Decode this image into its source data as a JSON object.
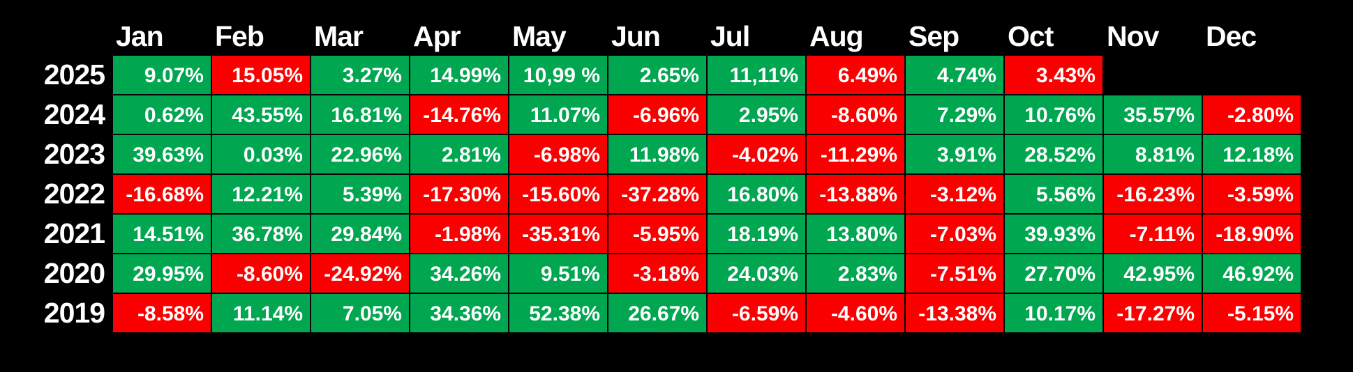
{
  "colors": {
    "positive": "#00a650",
    "negative": "#fb0000",
    "background": "#000000",
    "text": "#ffffff"
  },
  "table": {
    "months": [
      "Jan",
      "Feb",
      "Mar",
      "Apr",
      "May",
      "Jun",
      "Jul",
      "Aug",
      "Sep",
      "Oct",
      "Nov",
      "Dec"
    ],
    "rows": [
      {
        "year": "2025",
        "cells": [
          {
            "t": "9.07%",
            "c": "green"
          },
          {
            "t": "15.05%",
            "c": "red"
          },
          {
            "t": "3.27%",
            "c": "green"
          },
          {
            "t": "14.99%",
            "c": "green"
          },
          {
            "t": "10,99 %",
            "c": "green"
          },
          {
            "t": "2.65%",
            "c": "green"
          },
          {
            "t": "11,11%",
            "c": "green"
          },
          {
            "t": "6.49%",
            "c": "red"
          },
          {
            "t": "4.74%",
            "c": "green"
          },
          {
            "t": "3.43%",
            "c": "red"
          },
          {
            "t": "",
            "c": "none"
          },
          {
            "t": "",
            "c": "none"
          }
        ]
      },
      {
        "year": "2024",
        "cells": [
          {
            "t": "0.62%",
            "c": "green"
          },
          {
            "t": "43.55%",
            "c": "green"
          },
          {
            "t": "16.81%",
            "c": "green"
          },
          {
            "t": "-14.76%",
            "c": "red"
          },
          {
            "t": "11.07%",
            "c": "green"
          },
          {
            "t": "-6.96%",
            "c": "red"
          },
          {
            "t": "2.95%",
            "c": "green"
          },
          {
            "t": "-8.60%",
            "c": "red"
          },
          {
            "t": "7.29%",
            "c": "green"
          },
          {
            "t": "10.76%",
            "c": "green"
          },
          {
            "t": "35.57%",
            "c": "green"
          },
          {
            "t": "-2.80%",
            "c": "red"
          }
        ]
      },
      {
        "year": "2023",
        "cells": [
          {
            "t": "39.63%",
            "c": "green"
          },
          {
            "t": "0.03%",
            "c": "green"
          },
          {
            "t": "22.96%",
            "c": "green"
          },
          {
            "t": "2.81%",
            "c": "green"
          },
          {
            "t": "-6.98%",
            "c": "red"
          },
          {
            "t": "11.98%",
            "c": "green"
          },
          {
            "t": "-4.02%",
            "c": "red"
          },
          {
            "t": "-11.29%",
            "c": "red"
          },
          {
            "t": "3.91%",
            "c": "green"
          },
          {
            "t": "28.52%",
            "c": "green"
          },
          {
            "t": "8.81%",
            "c": "green"
          },
          {
            "t": "12.18%",
            "c": "green"
          }
        ]
      },
      {
        "year": "2022",
        "cells": [
          {
            "t": "-16.68%",
            "c": "red"
          },
          {
            "t": "12.21%",
            "c": "green"
          },
          {
            "t": "5.39%",
            "c": "green"
          },
          {
            "t": "-17.30%",
            "c": "red"
          },
          {
            "t": "-15.60%",
            "c": "red"
          },
          {
            "t": "-37.28%",
            "c": "red"
          },
          {
            "t": "16.80%",
            "c": "green"
          },
          {
            "t": "-13.88%",
            "c": "red"
          },
          {
            "t": "-3.12%",
            "c": "red"
          },
          {
            "t": "5.56%",
            "c": "green"
          },
          {
            "t": "-16.23%",
            "c": "red"
          },
          {
            "t": "-3.59%",
            "c": "red"
          }
        ]
      },
      {
        "year": "2021",
        "cells": [
          {
            "t": "14.51%",
            "c": "green"
          },
          {
            "t": "36.78%",
            "c": "green"
          },
          {
            "t": "29.84%",
            "c": "green"
          },
          {
            "t": "-1.98%",
            "c": "red"
          },
          {
            "t": "-35.31%",
            "c": "red"
          },
          {
            "t": "-5.95%",
            "c": "red"
          },
          {
            "t": "18.19%",
            "c": "green"
          },
          {
            "t": "13.80%",
            "c": "green"
          },
          {
            "t": "-7.03%",
            "c": "red"
          },
          {
            "t": "39.93%",
            "c": "green"
          },
          {
            "t": "-7.11%",
            "c": "red"
          },
          {
            "t": "-18.90%",
            "c": "red"
          }
        ]
      },
      {
        "year": "2020",
        "cells": [
          {
            "t": "29.95%",
            "c": "green"
          },
          {
            "t": "-8.60%",
            "c": "red"
          },
          {
            "t": "-24.92%",
            "c": "red"
          },
          {
            "t": "34.26%",
            "c": "green"
          },
          {
            "t": "9.51%",
            "c": "green"
          },
          {
            "t": "-3.18%",
            "c": "red"
          },
          {
            "t": "24.03%",
            "c": "green"
          },
          {
            "t": "2.83%",
            "c": "green"
          },
          {
            "t": "-7.51%",
            "c": "red"
          },
          {
            "t": "27.70%",
            "c": "green"
          },
          {
            "t": "42.95%",
            "c": "green"
          },
          {
            "t": "46.92%",
            "c": "green"
          }
        ]
      },
      {
        "year": "2019",
        "cells": [
          {
            "t": "-8.58%",
            "c": "red"
          },
          {
            "t": "11.14%",
            "c": "green"
          },
          {
            "t": "7.05%",
            "c": "green"
          },
          {
            "t": "34.36%",
            "c": "green"
          },
          {
            "t": "52.38%",
            "c": "green"
          },
          {
            "t": "26.67%",
            "c": "green"
          },
          {
            "t": "-6.59%",
            "c": "red"
          },
          {
            "t": "-4.60%",
            "c": "red"
          },
          {
            "t": "-13.38%",
            "c": "red"
          },
          {
            "t": "10.17%",
            "c": "green"
          },
          {
            "t": "-17.27%",
            "c": "red"
          },
          {
            "t": "-5.15%",
            "c": "red"
          }
        ]
      }
    ]
  },
  "chart_data": {
    "type": "heatmap",
    "x_labels": [
      "Jan",
      "Feb",
      "Mar",
      "Apr",
      "May",
      "Jun",
      "Jul",
      "Aug",
      "Sep",
      "Oct",
      "Nov",
      "Dec"
    ],
    "y_labels": [
      "2025",
      "2024",
      "2023",
      "2022",
      "2021",
      "2020",
      "2019"
    ],
    "series": [
      {
        "name": "2025",
        "values": [
          9.07,
          15.05,
          3.27,
          14.99,
          10.99,
          2.65,
          11.11,
          6.49,
          4.74,
          3.43,
          null,
          null
        ]
      },
      {
        "name": "2024",
        "values": [
          0.62,
          43.55,
          16.81,
          -14.76,
          11.07,
          -6.96,
          2.95,
          -8.6,
          7.29,
          10.76,
          35.57,
          -2.8
        ]
      },
      {
        "name": "2023",
        "values": [
          39.63,
          0.03,
          22.96,
          2.81,
          -6.98,
          11.98,
          -4.02,
          -11.29,
          3.91,
          28.52,
          8.81,
          12.18
        ]
      },
      {
        "name": "2022",
        "values": [
          -16.68,
          12.21,
          5.39,
          -17.3,
          -15.6,
          -37.28,
          16.8,
          -13.88,
          -3.12,
          5.56,
          -16.23,
          -3.59
        ]
      },
      {
        "name": "2021",
        "values": [
          14.51,
          36.78,
          29.84,
          -1.98,
          -35.31,
          -5.95,
          18.19,
          13.8,
          -7.03,
          39.93,
          -7.11,
          -18.9
        ]
      },
      {
        "name": "2020",
        "values": [
          29.95,
          -8.6,
          -24.92,
          34.26,
          9.51,
          -3.18,
          24.03,
          2.83,
          -7.51,
          27.7,
          42.95,
          46.92
        ]
      },
      {
        "name": "2019",
        "values": [
          -8.58,
          11.14,
          7.05,
          34.36,
          52.38,
          26.67,
          -6.59,
          -4.6,
          -13.38,
          10.17,
          -17.27,
          -5.15
        ]
      }
    ],
    "title": "",
    "legend": "off",
    "grid": "black cell separators",
    "cell_color_rule": "green = gain, red = loss; note 2025 Feb/Aug/Oct rendered red despite positive displayed value",
    "units": "percent monthly return"
  }
}
